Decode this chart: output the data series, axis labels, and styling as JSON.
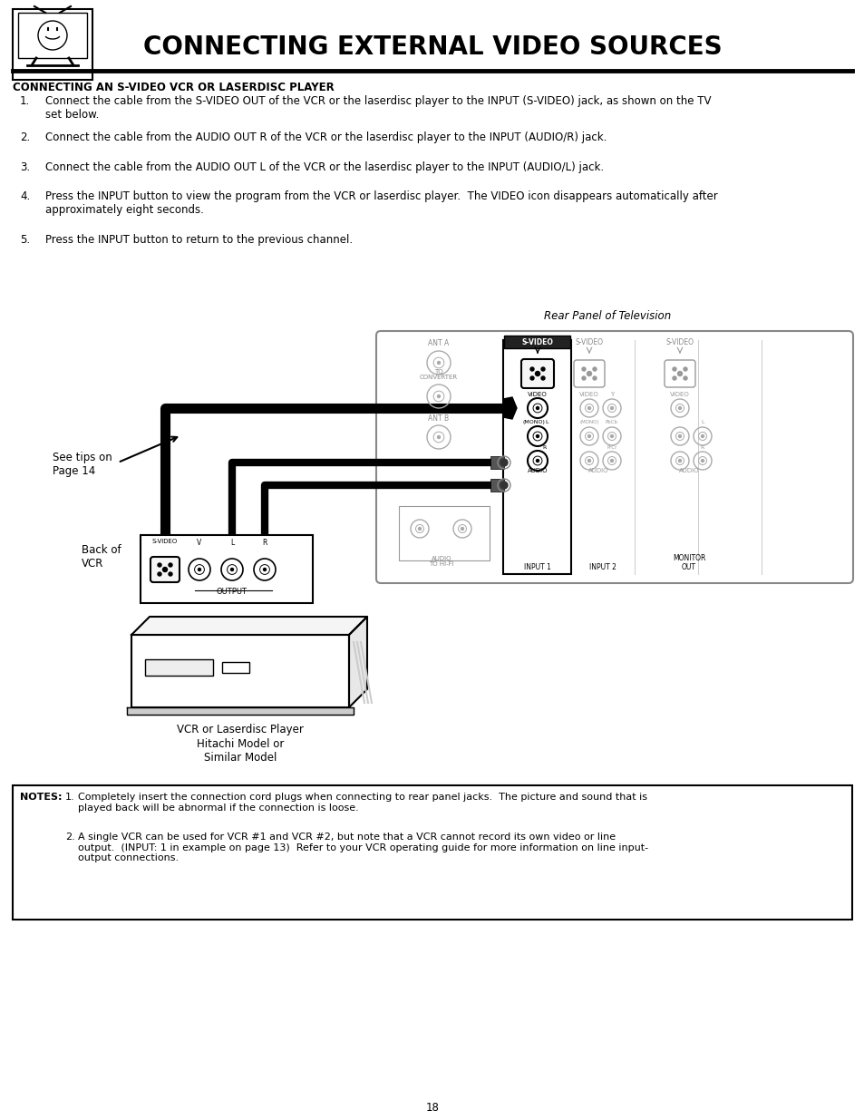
{
  "title": "CONNECTING EXTERNAL VIDEO SOURCES",
  "title_fontsize": 20,
  "section_title": "CONNECTING AN S-VIDEO VCR OR LASERDISC PLAYER",
  "section_title_fontsize": 8.5,
  "steps": [
    "Connect the cable from the S-VIDEO OUT of the VCR or the laserdisc player to the INPUT (S-VIDEO) jack, as shown on the TV\nset below.",
    "Connect the cable from the AUDIO OUT R of the VCR or the laserdisc player to the INPUT (AUDIO/R) jack.",
    "Connect the cable from the AUDIO OUT L of the VCR or the laserdisc player to the INPUT (AUDIO/L) jack.",
    "Press the INPUT button to view the program from the VCR or laserdisc player.  The VIDEO icon disappears automatically after\napproximately eight seconds.",
    "Press the INPUT button to return to the previous channel."
  ],
  "diagram_caption_right": "Rear Panel of Television",
  "diagram_label_see_tips": "See tips on\nPage 14",
  "diagram_label_back_vcr": "Back of\nVCR",
  "diagram_label_vcr_player": "VCR or Laserdisc Player",
  "diagram_label_hitachi": "Hitachi Model or\nSimilar Model",
  "notes_label": "NOTES:",
  "notes": [
    "Completely insert the connection cord plugs when connecting to rear panel jacks.  The picture and sound that is\nplayed back will be abnormal if the connection is loose.",
    "A single VCR can be used for VCR #1 and VCR #2, but note that a VCR cannot record its own video or line\noutput.  (INPUT: 1 in example on page 13)  Refer to your VCR operating guide for more information on line input-\noutput connections."
  ],
  "page_number": "18",
  "bg_color": "#ffffff",
  "text_color": "#000000",
  "body_fontsize": 8.5,
  "notes_fontsize": 8.0
}
